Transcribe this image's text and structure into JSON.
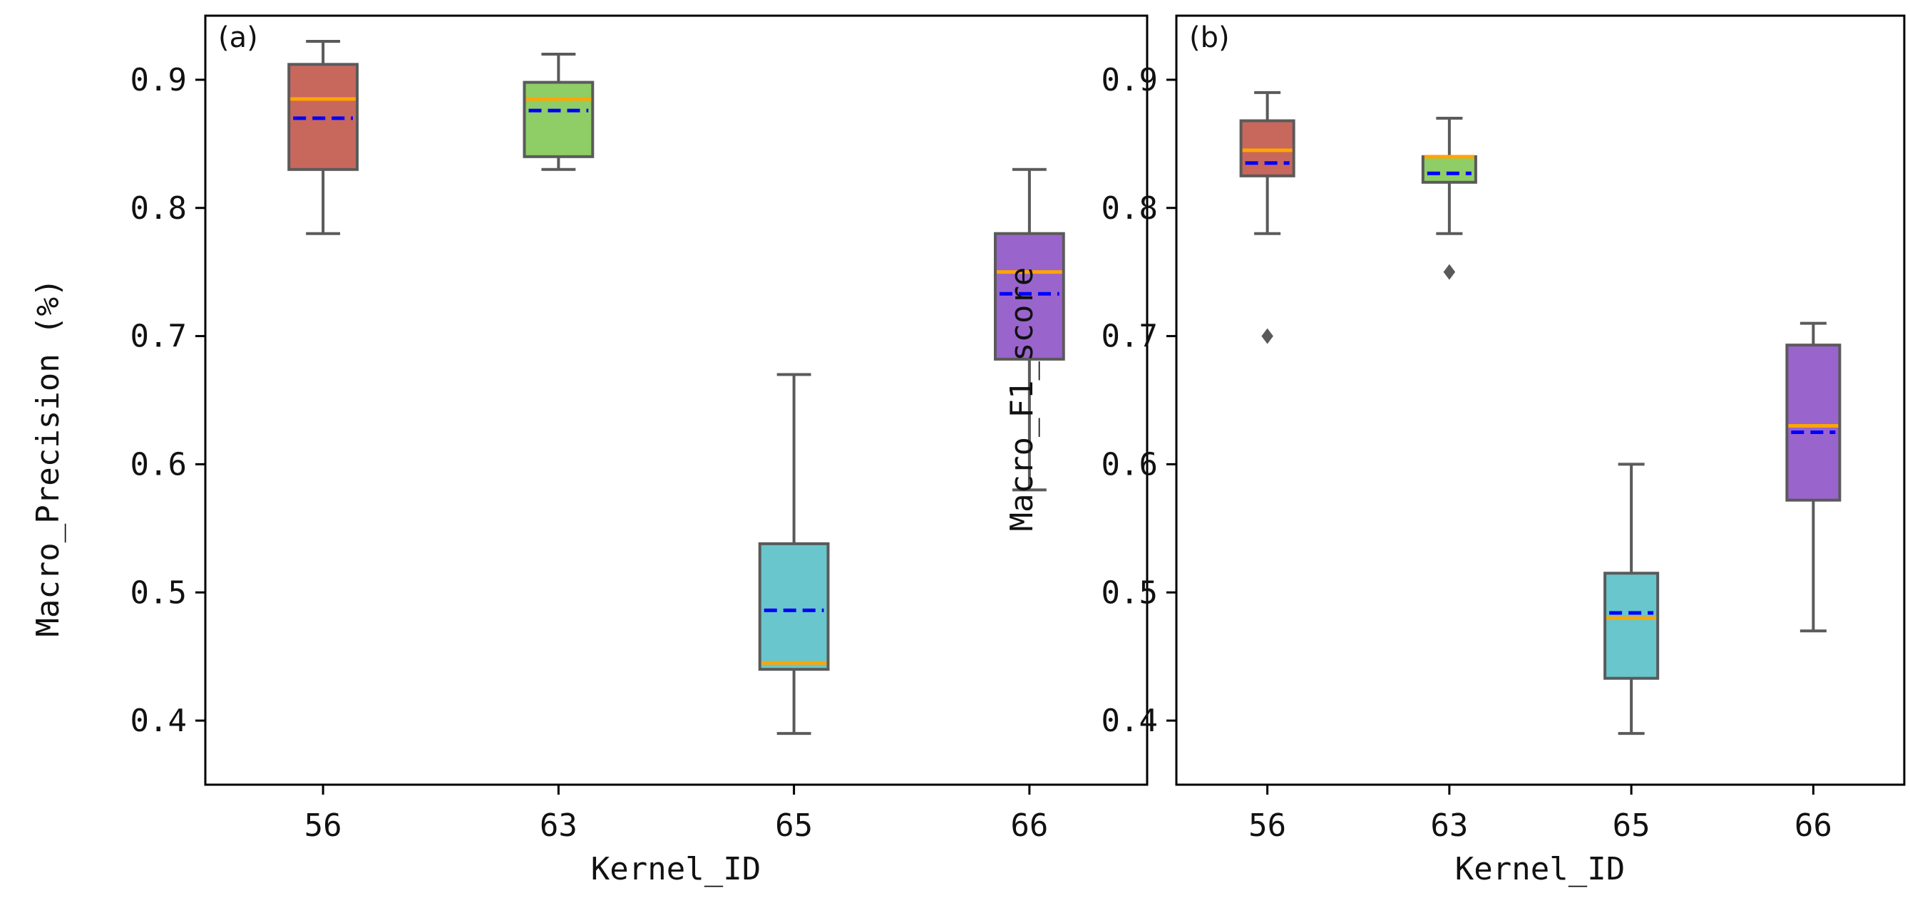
{
  "chart_data": [
    {
      "type": "box",
      "panel_label": "(a)",
      "xlabel": "Kernel_ID",
      "ylabel": "Macro_Precision (%)",
      "ylim": [
        0.35,
        0.95
      ],
      "yticks": [
        0.4,
        0.5,
        0.6,
        0.7,
        0.8,
        0.9
      ],
      "ytick_labels": [
        "0.4",
        "0.5",
        "0.6",
        "0.7",
        "0.8",
        "0.9"
      ],
      "categories": [
        "56",
        "63",
        "65",
        "66"
      ],
      "boxes": [
        {
          "category": "56",
          "whisker_low": 0.78,
          "q1": 0.83,
          "median": 0.885,
          "mean": 0.87,
          "q3": 0.912,
          "whisker_high": 0.93,
          "fliers": [],
          "color": "#c8685d"
        },
        {
          "category": "63",
          "whisker_low": 0.83,
          "q1": 0.84,
          "median": 0.885,
          "mean": 0.876,
          "q3": 0.898,
          "whisker_high": 0.92,
          "fliers": [],
          "color": "#8fcd66"
        },
        {
          "category": "65",
          "whisker_low": 0.39,
          "q1": 0.44,
          "median": 0.445,
          "mean": 0.486,
          "q3": 0.538,
          "whisker_high": 0.67,
          "fliers": [],
          "color": "#68c6cc"
        },
        {
          "category": "66",
          "whisker_low": 0.58,
          "q1": 0.682,
          "median": 0.75,
          "mean": 0.733,
          "q3": 0.78,
          "whisker_high": 0.83,
          "fliers": [],
          "color": "#9a64cd"
        }
      ]
    },
    {
      "type": "box",
      "panel_label": "(b)",
      "xlabel": "Kernel_ID",
      "ylabel": "Macro_F1_score",
      "ylim": [
        0.35,
        0.95
      ],
      "yticks": [
        0.4,
        0.5,
        0.6,
        0.7,
        0.8,
        0.9
      ],
      "ytick_labels": [
        "0.4",
        "0.5",
        "0.6",
        "0.7",
        "0.8",
        "0.9"
      ],
      "categories": [
        "56",
        "63",
        "65",
        "66"
      ],
      "boxes": [
        {
          "category": "56",
          "whisker_low": 0.78,
          "q1": 0.825,
          "median": 0.845,
          "mean": 0.835,
          "q3": 0.868,
          "whisker_high": 0.89,
          "fliers": [
            0.7
          ],
          "color": "#c8685d"
        },
        {
          "category": "63",
          "whisker_low": 0.78,
          "q1": 0.82,
          "median": 0.84,
          "mean": 0.827,
          "q3": 0.84,
          "whisker_high": 0.87,
          "fliers": [
            0.75
          ],
          "color": "#8fcd66"
        },
        {
          "category": "65",
          "whisker_low": 0.39,
          "q1": 0.433,
          "median": 0.48,
          "mean": 0.484,
          "q3": 0.515,
          "whisker_high": 0.6,
          "fliers": [],
          "color": "#68c6cc"
        },
        {
          "category": "66",
          "whisker_low": 0.47,
          "q1": 0.572,
          "median": 0.63,
          "mean": 0.625,
          "q3": 0.693,
          "whisker_high": 0.71,
          "fliers": [],
          "color": "#9a64cd"
        }
      ]
    }
  ],
  "style": {
    "median_color": "#ffa500",
    "mean_color": "#0000ff",
    "line_color": "#5a5a5a",
    "flier_color": "#5a5a5a"
  }
}
